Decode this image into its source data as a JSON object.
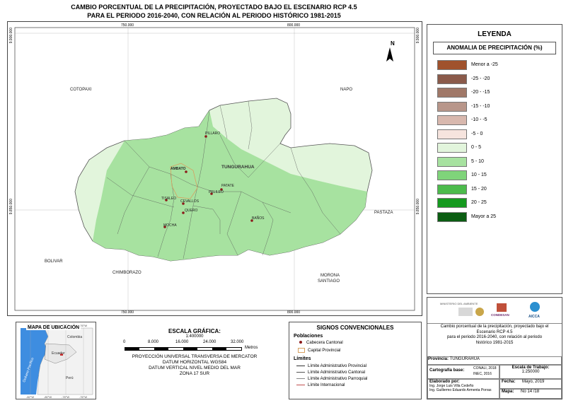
{
  "title": {
    "line1": "CAMBIO PORCENTUAL DE LA PRECIPITACIÓN, PROYECTADO BAJO EL ESCENARIO RCP 4.5",
    "line2": "PARA EL PERIODO 2016-2040, CON RELACIÓN AL PERIODO HISTÓRICO 1981-2015"
  },
  "grid": {
    "top_x": [
      "750.000",
      "800.000"
    ],
    "bottom_x": [
      "750.000",
      "800.000"
    ],
    "left_y": [
      "9.900.000",
      "9.850.000"
    ],
    "right_y": [
      "9.900.000",
      "9.850.000"
    ]
  },
  "north": "N",
  "neighbors": [
    "COTOPAXI",
    "NAPO",
    "PASTAZA",
    "BOLIVAR",
    "CHIMBORAZO",
    "MORONA SANTIAGO"
  ],
  "province_label": "TUNGURAHUA",
  "cities": [
    "PILLARO",
    "AMBATO",
    "PATATE",
    "PELILEO",
    "TISALEO",
    "CEVALLOS",
    "QUERO",
    "MOCHA",
    "BAÑOS"
  ],
  "legend": {
    "title": "LEYENDA",
    "subtitle": "ANOMALIA DE PRECIPITACIÓN (%)",
    "items": [
      {
        "label": "Menor a -25",
        "color": "#a0522d"
      },
      {
        "label": "-25 - -20",
        "color": "#8a5a4a"
      },
      {
        "label": "-20 - -15",
        "color": "#a07868"
      },
      {
        "label": "-15 - -10",
        "color": "#b8968a"
      },
      {
        "label": "-10 - -5",
        "color": "#d8b8ae"
      },
      {
        "label": "-5 - 0",
        "color": "#f6e4de"
      },
      {
        "label": "0 - 5",
        "color": "#e2f5dc"
      },
      {
        "label": "5 - 10",
        "color": "#a7e2a0"
      },
      {
        "label": "10 - 15",
        "color": "#7fd47a"
      },
      {
        "label": "15 - 20",
        "color": "#4cbb4c"
      },
      {
        "label": "20 - 25",
        "color": "#159a1f"
      },
      {
        "label": "Mayor a 25",
        "color": "#0b5d12"
      }
    ]
  },
  "location_map": {
    "title": "MAPA DE UBICACIÓN",
    "top_ticks": [
      "-82°W",
      "-80°W",
      "-78°W",
      "-76°W"
    ],
    "bottom_ticks": [
      "-82°W",
      "-80°W",
      "-78°W",
      "-76°W"
    ],
    "labels": [
      "Colombia",
      "Ecuador",
      "Perú",
      "Océano Pacífico"
    ]
  },
  "scale": {
    "title": "ESCALA GRÁFICA:",
    "ratio": "1:400000",
    "ticks": [
      "0",
      "8.000",
      "16.000",
      "24.000",
      "32.000"
    ],
    "unit": "Metros",
    "projection": [
      "PROYECCIÓN UNIVERSAL TRANSVERSA DE MERCATOR",
      "DATUM HORIZONTAL WGS84",
      "DATUM VERTICAL NIVEL MEDIO DEL MAR",
      "ZONA 17 SUR"
    ]
  },
  "signs": {
    "title": "SIGNOS CONVENCIONALES",
    "poblaciones": "Poblaciones",
    "cabecera": "Cabecera Cantonal",
    "capital": "Capital Provincial",
    "limites": "Límites",
    "lim_prov": "Límite Administrativo Provincial",
    "lim_cant": "Límite Administrativo Cantonal",
    "lim_parr": "Límite Administrativo Parroquial",
    "lim_int": "Límite Internacional"
  },
  "info": {
    "logos": [
      "MINISTERIO DEL AMBIENTE",
      "CONDESAN",
      "AICCA"
    ],
    "description": [
      "Cambio porcentual de la precipitación, proyectado bajo el",
      "Escenario RCP 4.5",
      "para el periodo 2016-2040, con relación al periodo",
      "histórico 1981-2015"
    ],
    "province_label": "Provincia:",
    "province_value": "TUNGURAHUA",
    "carto_label": "Cartografía base:",
    "carto_value": [
      "CONALI, 2018",
      "INEC, 2016"
    ],
    "scale_label": "Escala de Trabajo:",
    "scale_value": "1:250000",
    "elab_label": "Elaborado por:",
    "elab_names": [
      "Ing. Jorge Luis Villa Cedeño",
      "Ing. Guillermo Eduardo Armenta Porras"
    ],
    "fecha_label": "Fecha:",
    "fecha_value": "Mayo, 2019",
    "mapa_label": "Mapa:",
    "mapa_value": "No 14 /18"
  }
}
